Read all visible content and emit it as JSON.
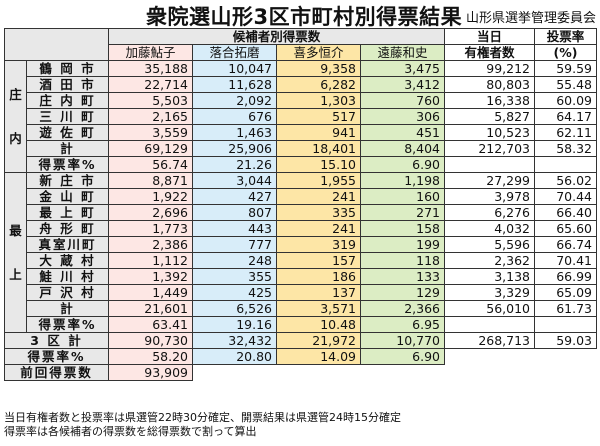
{
  "header": {
    "title": "衆院選山形3区市町村別得票結果",
    "org": "山形県選挙管理委員会"
  },
  "columns": {
    "group": "候補者別得票数",
    "candidates": [
      "加藤鮎子",
      "落合拓磨",
      "喜多恒介",
      "遠藤和史"
    ],
    "voters": [
      "当日",
      "有権者数"
    ],
    "turnout": [
      "投票率",
      "(%)"
    ]
  },
  "regions": [
    {
      "name": [
        "庄",
        "内"
      ],
      "rows": [
        {
          "label": "鶴 岡 市",
          "votes": [
            "35,188",
            "10,047",
            "9,358",
            "3,475"
          ],
          "voters": "99,212",
          "turnout": "59.59"
        },
        {
          "label": "酒 田 市",
          "votes": [
            "22,714",
            "11,628",
            "6,282",
            "3,412"
          ],
          "voters": "80,803",
          "turnout": "55.48"
        },
        {
          "label": "庄 内 町",
          "votes": [
            "5,503",
            "2,092",
            "1,303",
            "760"
          ],
          "voters": "16,338",
          "turnout": "60.09"
        },
        {
          "label": "三 川 町",
          "votes": [
            "2,165",
            "676",
            "517",
            "306"
          ],
          "voters": "5,827",
          "turnout": "64.17"
        },
        {
          "label": "遊 佐 町",
          "votes": [
            "3,559",
            "1,463",
            "941",
            "451"
          ],
          "voters": "10,523",
          "turnout": "62.11"
        },
        {
          "label": "計",
          "votes": [
            "69,129",
            "25,906",
            "18,401",
            "8,404"
          ],
          "voters": "212,703",
          "turnout": "58.32"
        }
      ],
      "share": {
        "label": "得票率%",
        "values": [
          "56.74",
          "21.26",
          "15.10",
          "6.90"
        ]
      }
    },
    {
      "name": [
        "最",
        "上"
      ],
      "rows": [
        {
          "label": "新 庄 市",
          "votes": [
            "8,871",
            "3,044",
            "1,955",
            "1,198"
          ],
          "voters": "27,299",
          "turnout": "56.02"
        },
        {
          "label": "金 山 町",
          "votes": [
            "1,922",
            "427",
            "241",
            "160"
          ],
          "voters": "3,978",
          "turnout": "70.44"
        },
        {
          "label": "最 上 町",
          "votes": [
            "2,696",
            "807",
            "335",
            "271"
          ],
          "voters": "6,276",
          "turnout": "66.40"
        },
        {
          "label": "舟 形 町",
          "votes": [
            "1,773",
            "443",
            "241",
            "158"
          ],
          "voters": "4,032",
          "turnout": "65.60"
        },
        {
          "label": "真室川町",
          "votes": [
            "2,386",
            "777",
            "319",
            "199"
          ],
          "voters": "5,596",
          "turnout": "66.74"
        },
        {
          "label": "大 蔵 村",
          "votes": [
            "1,112",
            "248",
            "157",
            "118"
          ],
          "voters": "2,362",
          "turnout": "70.41"
        },
        {
          "label": "鮭 川 村",
          "votes": [
            "1,392",
            "355",
            "186",
            "133"
          ],
          "voters": "3,138",
          "turnout": "66.99"
        },
        {
          "label": "戸 沢 村",
          "votes": [
            "1,449",
            "425",
            "137",
            "129"
          ],
          "voters": "3,329",
          "turnout": "65.09"
        },
        {
          "label": "計",
          "votes": [
            "21,601",
            "6,526",
            "3,571",
            "2,366"
          ],
          "voters": "56,010",
          "turnout": "61.73"
        }
      ],
      "share": {
        "label": "得票率%",
        "values": [
          "63.41",
          "19.16",
          "10.48",
          "6.95"
        ]
      }
    }
  ],
  "district_total": {
    "label": "3 区 計",
    "votes": [
      "90,730",
      "32,432",
      "21,972",
      "10,770"
    ],
    "voters": "268,713",
    "turnout": "59.03"
  },
  "district_share": {
    "label": "得票率%",
    "values": [
      "58.20",
      "20.80",
      "14.09",
      "6.90"
    ]
  },
  "previous": {
    "label": "前回得票数",
    "value": "93,909"
  },
  "footnotes": [
    "当日有権者数と投票率は県選管22時30分確定、開票結果は県選管24時15分確定",
    "得票率は各候補者の得票数を総得票数で割って算出"
  ]
}
